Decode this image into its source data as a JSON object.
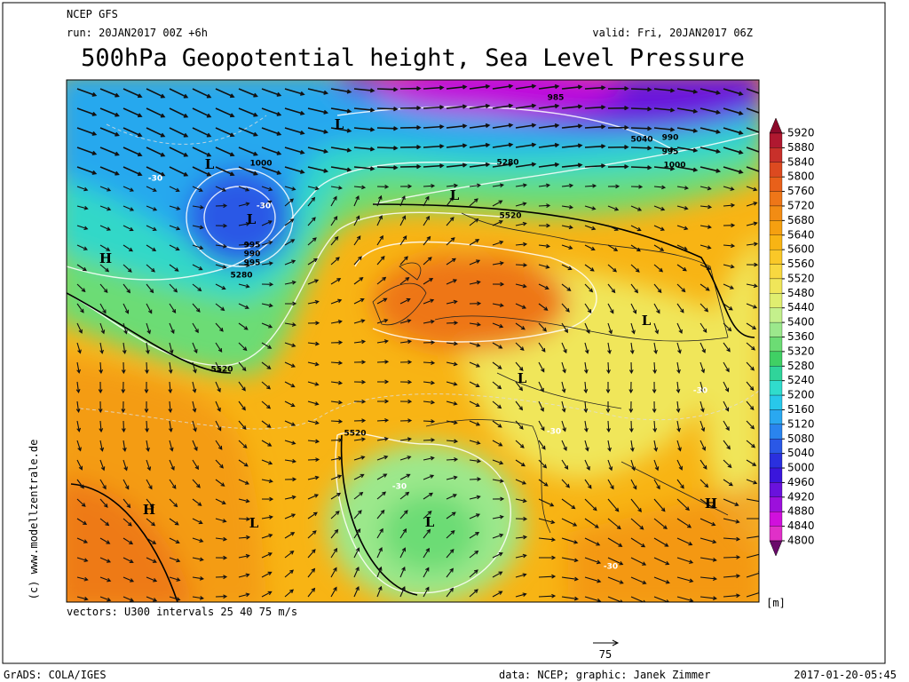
{
  "header": {
    "model": "NCEP GFS",
    "run": "run: 20JAN2017 00Z +6h",
    "valid": "valid: Fri, 20JAN2017 06Z",
    "title": "500hPa Geopotential height, Sea Level Pressure"
  },
  "map": {
    "labels": [
      "L",
      "L",
      "L",
      "H",
      "L",
      "L",
      "L",
      "L",
      "L",
      "H",
      "L",
      "L",
      "H"
    ],
    "contour_labels": [
      "5520",
      "5280",
      "5520",
      "5520",
      "5280",
      "5040",
      "1000",
      "995",
      "990",
      "995",
      "985",
      "990",
      "995",
      "1000",
      "-30",
      "-30",
      "-30",
      "-30",
      "-30",
      "-30"
    ]
  },
  "colorbar": {
    "ticks": [
      5920,
      5880,
      5840,
      5800,
      5760,
      5720,
      5680,
      5640,
      5600,
      5560,
      5520,
      5480,
      5440,
      5400,
      5360,
      5320,
      5280,
      5240,
      5200,
      5160,
      5120,
      5080,
      5040,
      5000,
      4960,
      4920,
      4880,
      4840,
      4800
    ],
    "colors": [
      "#8c0a2a",
      "#b01830",
      "#c8302a",
      "#dc4a20",
      "#e8601a",
      "#ee7618",
      "#f28c14",
      "#f5a010",
      "#f8b414",
      "#fac828",
      "#f8d840",
      "#f0e65a",
      "#e0ee70",
      "#c4f08c",
      "#9ce88c",
      "#6cdc74",
      "#40d064",
      "#30d49a",
      "#30dccc",
      "#28c8ea",
      "#2aa8f0",
      "#2a84ee",
      "#2a58e6",
      "#2a30de",
      "#3a16dc",
      "#6a12dc",
      "#9c10dc",
      "#d010dc",
      "#e030c8",
      "#6a0a6a"
    ],
    "unit": "[m]"
  },
  "footer": {
    "vectors": "vectors: U300 intervals 25 40 75 m/s",
    "vector_ref": "75",
    "copyright": "(c) www.modellzentrale.de",
    "grads": "GrADS: COLA/IGES",
    "credits": "data: NCEP; graphic: Janek Zimmer",
    "timestamp": "2017-01-20-05:45"
  }
}
